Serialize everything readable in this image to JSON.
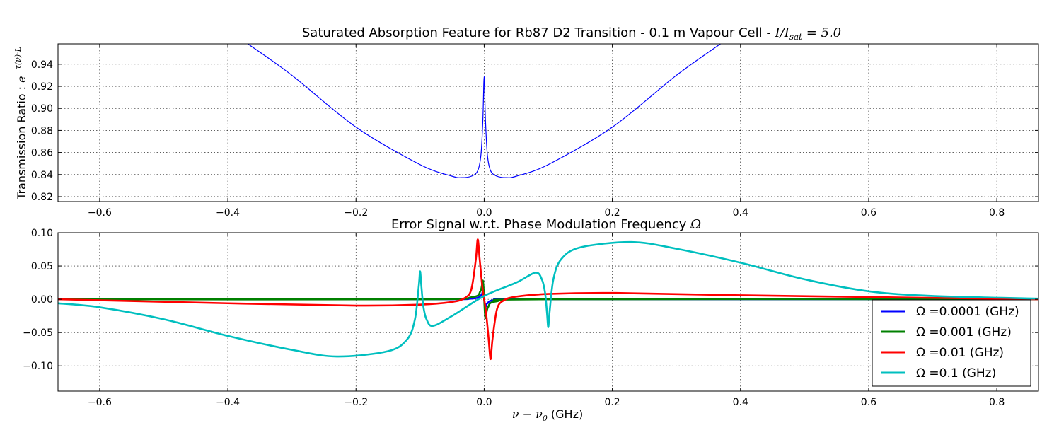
{
  "chart_data": [
    {
      "type": "line",
      "title": "Saturated Absorption Feature for Rb87 D2 Transition - 0.1 m Vapour Cell - I/I_sat = 5.0",
      "title_text": "Saturated Absorption Feature for Rb87 D2 Transition - 0.1 m Vapour Cell - ",
      "title_math": "I/I",
      "title_math_sub": "sat",
      "title_math_tail": " = 5.0",
      "ylabel": "Transmission Ratio : ",
      "ylabel_math": "e",
      "ylabel_math_sup": "−τ(ν)·L",
      "xlim": [
        -0.665,
        0.865
      ],
      "ylim": [
        0.8155,
        0.9585
      ],
      "xticks": [
        "−0.6",
        "−0.4",
        "−0.2",
        "0.0",
        "0.2",
        "0.4",
        "0.6",
        "0.8"
      ],
      "xtick_values": [
        -0.6,
        -0.4,
        -0.2,
        0.0,
        0.2,
        0.4,
        0.6,
        0.8
      ],
      "yticks": [
        "0.82",
        "0.84",
        "0.86",
        "0.88",
        "0.90",
        "0.92",
        "0.94"
      ],
      "ytick_values": [
        0.82,
        0.84,
        0.86,
        0.88,
        0.9,
        0.92,
        0.94
      ],
      "grid": true,
      "series": [
        {
          "color": "#0000ff",
          "x": [
            -0.37,
            -0.3,
            -0.2,
            -0.1,
            -0.05,
            -0.035,
            -0.02,
            -0.01,
            -0.005,
            -0.002,
            0.0,
            0.002,
            0.005,
            0.01,
            0.02,
            0.035,
            0.05,
            0.1,
            0.2,
            0.3,
            0.37
          ],
          "y": [
            0.959,
            0.93,
            0.883,
            0.849,
            0.8385,
            0.8372,
            0.8385,
            0.8435,
            0.858,
            0.89,
            0.929,
            0.89,
            0.858,
            0.8435,
            0.8385,
            0.8372,
            0.8385,
            0.849,
            0.883,
            0.93,
            0.959
          ]
        }
      ]
    },
    {
      "type": "line",
      "title": "Error Signal w.r.t. Phase Modulation Frequency Ω",
      "title_text": "Error Signal w.r.t. Phase Modulation Frequency ",
      "title_math": "Ω",
      "xlabel": " (GHz)",
      "xlabel_math": "ν − ν",
      "xlabel_math_sub": "0",
      "xlim": [
        -0.665,
        0.865
      ],
      "ylim": [
        -0.138,
        0.1
      ],
      "xticks": [
        "−0.6",
        "−0.4",
        "−0.2",
        "0.0",
        "0.2",
        "0.4",
        "0.6",
        "0.8"
      ],
      "xtick_values": [
        -0.6,
        -0.4,
        -0.2,
        0.0,
        0.2,
        0.4,
        0.6,
        0.8
      ],
      "yticks": [
        "0.10",
        "0.05",
        "0.00",
        "−0.05",
        "−0.10"
      ],
      "ytick_values": [
        0.1,
        0.05,
        0.0,
        -0.05,
        -0.1
      ],
      "grid": true,
      "legend_position": "lower-right",
      "series": [
        {
          "name": "Ω =0.0001 (GHz)",
          "color": "#0000ff",
          "x": [
            -0.665,
            -0.1,
            -0.02,
            -0.005,
            -0.002,
            0.0,
            0.002,
            0.005,
            0.02,
            0.1,
            0.865
          ],
          "y": [
            0.0,
            0.0,
            0.001,
            0.006,
            0.012,
            0.0,
            -0.012,
            -0.006,
            -0.001,
            0.0,
            0.0
          ]
        },
        {
          "name": "Ω =0.001 (GHz)",
          "color": "#008000",
          "x": [
            -0.665,
            -0.1,
            -0.02,
            -0.006,
            -0.002,
            0.0,
            0.002,
            0.006,
            0.02,
            0.1,
            0.865
          ],
          "y": [
            0.0,
            0.0,
            0.003,
            0.012,
            0.028,
            0.0,
            -0.028,
            -0.012,
            -0.003,
            0.0,
            0.0
          ]
        },
        {
          "name": "Ω =0.01 (GHz)",
          "color": "#ff0000",
          "x": [
            -0.665,
            -0.4,
            -0.2,
            -0.1,
            -0.05,
            -0.03,
            -0.02,
            -0.013,
            -0.01,
            -0.007,
            -0.003,
            0.0,
            0.003,
            0.007,
            0.01,
            0.013,
            0.02,
            0.03,
            0.05,
            0.1,
            0.2,
            0.4,
            0.865
          ],
          "y": [
            0.0,
            -0.006,
            -0.0095,
            -0.008,
            -0.004,
            0.002,
            0.015,
            0.06,
            0.09,
            0.06,
            0.02,
            0.0,
            -0.02,
            -0.06,
            -0.09,
            -0.06,
            -0.015,
            -0.002,
            0.004,
            0.008,
            0.0095,
            0.006,
            0.0
          ]
        },
        {
          "name": "Ω =0.1 (GHz)",
          "color": "#00bfbf",
          "x": [
            -0.665,
            -0.6,
            -0.5,
            -0.4,
            -0.3,
            -0.23,
            -0.15,
            -0.12,
            -0.108,
            -0.102,
            -0.1,
            -0.098,
            -0.095,
            -0.09,
            -0.08,
            -0.05,
            0.0,
            0.05,
            0.08,
            0.09,
            0.095,
            0.098,
            0.1,
            0.102,
            0.108,
            0.12,
            0.15,
            0.23,
            0.3,
            0.4,
            0.5,
            0.6,
            0.7,
            0.865
          ],
          "y": [
            -0.006,
            -0.012,
            -0.03,
            -0.055,
            -0.076,
            -0.086,
            -0.078,
            -0.06,
            -0.03,
            0.02,
            0.042,
            0.02,
            -0.01,
            -0.03,
            -0.04,
            -0.025,
            0.005,
            0.025,
            0.04,
            0.03,
            0.01,
            -0.02,
            -0.042,
            -0.02,
            0.03,
            0.06,
            0.078,
            0.086,
            0.076,
            0.055,
            0.03,
            0.012,
            0.005,
            0.001
          ]
        }
      ]
    }
  ]
}
